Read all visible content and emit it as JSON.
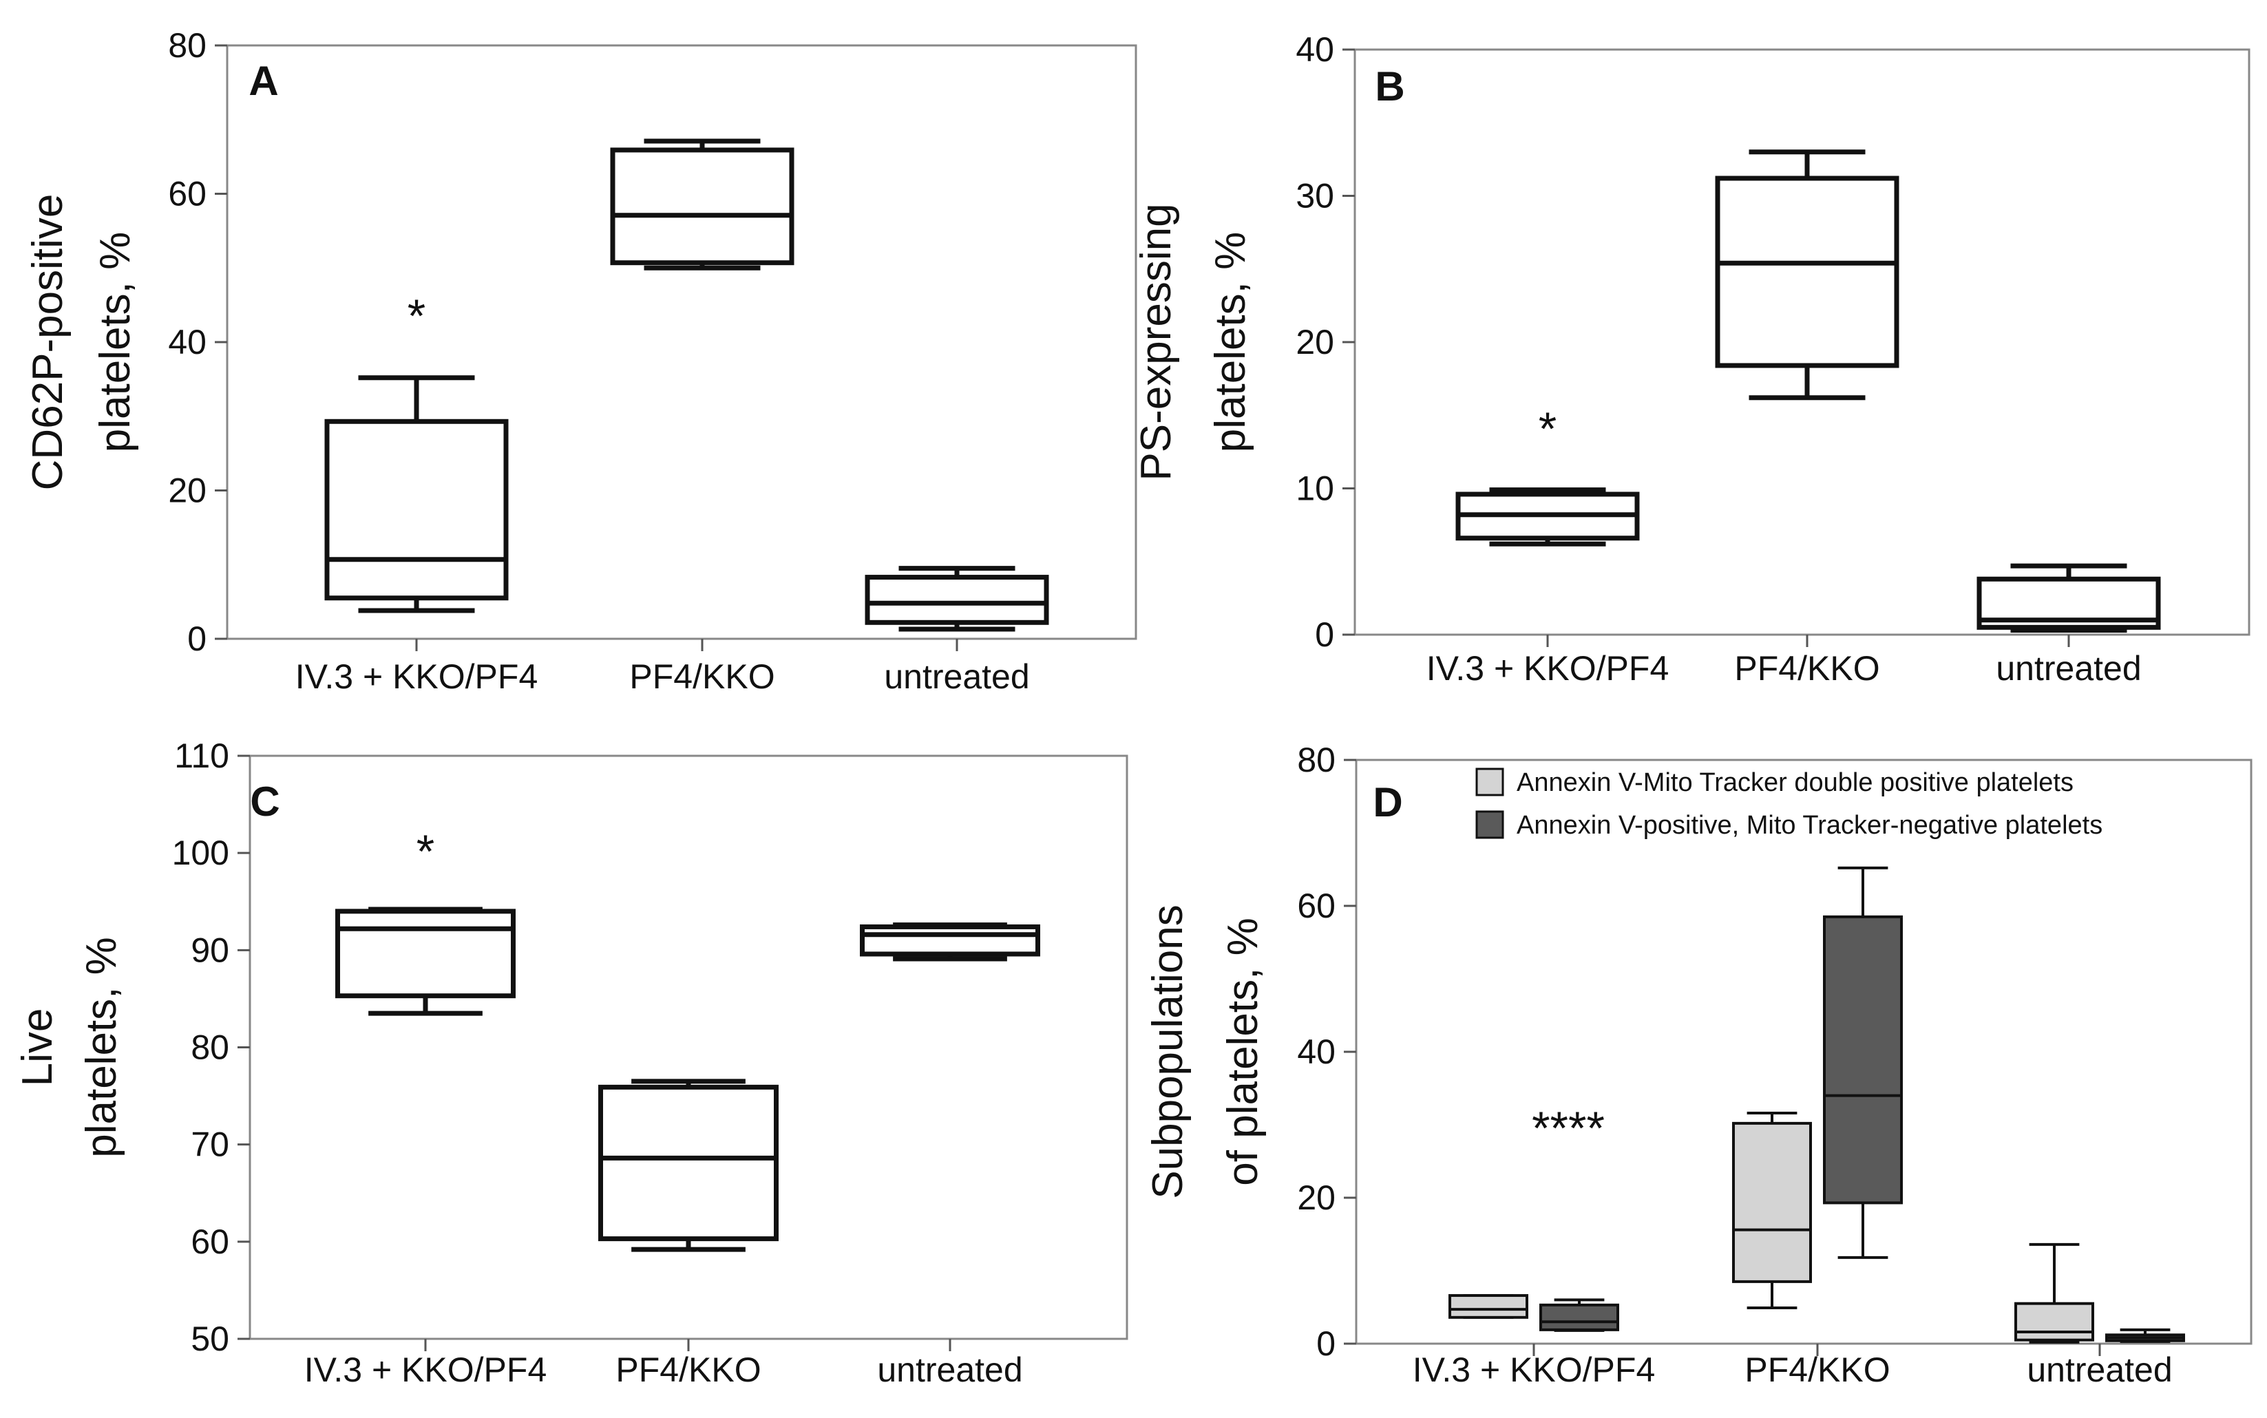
{
  "chart_data": [
    {
      "type": "box",
      "panel_label": "A",
      "ylabel_lines": [
        "CD62P-positive",
        "platelets, %"
      ],
      "ylim": [
        0,
        80
      ],
      "yticks": [
        0,
        20,
        40,
        60,
        80
      ],
      "categories": [
        "IV.3 + KKO/PF4",
        "PF4/KKO",
        "untreated"
      ],
      "boxes": [
        {
          "category": "IV.3 + KKO/PF4",
          "min": 3.8,
          "q1": 5.5,
          "median": 10.7,
          "q3": 29.3,
          "max": 35.2
        },
        {
          "category": "PF4/KKO",
          "min": 50.0,
          "q1": 50.7,
          "median": 57.1,
          "q3": 65.9,
          "max": 67.1
        },
        {
          "category": "untreated",
          "min": 1.3,
          "q1": 2.2,
          "median": 4.8,
          "q3": 8.3,
          "max": 9.5
        }
      ],
      "annotations": [
        {
          "text": "*",
          "category": "IV.3 + KKO/PF4",
          "y": 44
        }
      ],
      "grid": false
    },
    {
      "type": "box",
      "panel_label": "B",
      "ylabel_lines": [
        "PS-expressing",
        "platelets, %"
      ],
      "ylim": [
        0,
        40
      ],
      "yticks": [
        0,
        10,
        20,
        30,
        40
      ],
      "categories": [
        "IV.3 + KKO/PF4",
        "PF4/KKO",
        "untreated"
      ],
      "boxes": [
        {
          "category": "IV.3 + KKO/PF4",
          "min": 6.2,
          "q1": 6.6,
          "median": 8.2,
          "q3": 9.6,
          "max": 9.9
        },
        {
          "category": "PF4/KKO",
          "min": 16.2,
          "q1": 18.4,
          "median": 25.4,
          "q3": 31.2,
          "max": 33.0
        },
        {
          "category": "untreated",
          "min": 0.3,
          "q1": 0.5,
          "median": 1.0,
          "q3": 3.8,
          "max": 4.7
        }
      ],
      "annotations": [
        {
          "text": "*",
          "category": "IV.3 + KKO/PF4",
          "y": 14.3
        }
      ],
      "grid": false
    },
    {
      "type": "box",
      "panel_label": "C",
      "ylabel_lines": [
        "Live",
        "platelets, %"
      ],
      "ylim": [
        50,
        110
      ],
      "yticks": [
        50,
        60,
        70,
        80,
        90,
        100,
        110
      ],
      "categories": [
        "IV.3 + KKO/PF4",
        "PF4/KKO",
        "untreated"
      ],
      "boxes": [
        {
          "category": "IV.3 + KKO/PF4",
          "min": 83.5,
          "q1": 85.3,
          "median": 92.2,
          "q3": 94.0,
          "max": 94.2
        },
        {
          "category": "PF4/KKO",
          "min": 59.2,
          "q1": 60.3,
          "median": 68.6,
          "q3": 75.9,
          "max": 76.5
        },
        {
          "category": "untreated",
          "min": 89.1,
          "q1": 89.6,
          "median": 91.6,
          "q3": 92.4,
          "max": 92.6
        }
      ],
      "annotations": [
        {
          "text": "*",
          "category": "IV.3 + KKO/PF4",
          "y": 100.5
        }
      ],
      "grid": false
    },
    {
      "type": "box",
      "panel_label": "D",
      "ylabel_lines": [
        "Subpopulations",
        "of platelets, %"
      ],
      "ylim": [
        0,
        80
      ],
      "yticks": [
        0,
        20,
        40,
        60,
        80
      ],
      "categories": [
        "IV.3 + KKO/PF4",
        "PF4/KKO",
        "untreated"
      ],
      "legend_position": "top-right",
      "series": [
        {
          "name": "Annexin V-Mito Tracker double positive platelets",
          "color": "#d4d4d4",
          "boxes": [
            {
              "category": "IV.3 + KKO/PF4",
              "min": 3.6,
              "q1": 3.6,
              "median": 4.7,
              "q3": 6.6,
              "max": 6.6
            },
            {
              "category": "PF4/KKO",
              "min": 4.9,
              "q1": 8.5,
              "median": 15.6,
              "q3": 30.2,
              "max": 31.6
            },
            {
              "category": "untreated",
              "min": 0.2,
              "q1": 0.5,
              "median": 1.6,
              "q3": 5.5,
              "max": 13.6
            }
          ]
        },
        {
          "name": "Annexin V-positive, Mito Tracker-negative platelets",
          "color": "#5a5a5a",
          "boxes": [
            {
              "category": "IV.3 + KKO/PF4",
              "min": 1.8,
              "q1": 1.9,
              "median": 3.0,
              "q3": 5.3,
              "max": 6.0
            },
            {
              "category": "PF4/KKO",
              "min": 11.8,
              "q1": 19.3,
              "median": 34.0,
              "q3": 58.5,
              "max": 65.2
            },
            {
              "category": "untreated",
              "min": 0.3,
              "q1": 0.4,
              "median": 0.8,
              "q3": 1.2,
              "max": 1.9
            }
          ]
        }
      ],
      "annotations": [
        {
          "text": "****",
          "category": "IV.3 + KKO/PF4",
          "y": 30
        }
      ],
      "grid": false
    }
  ]
}
